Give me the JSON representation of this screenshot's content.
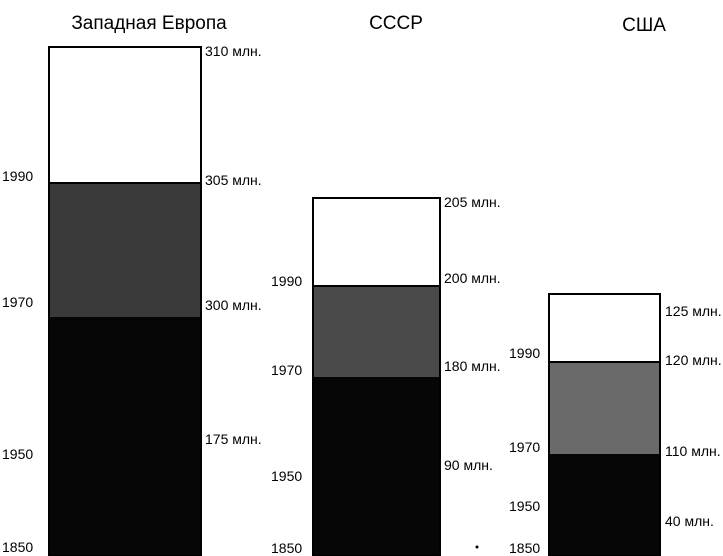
{
  "chart_data": {
    "type": "bar",
    "columns": [
      {
        "title": "Западная Европа",
        "segments": [
          {
            "year_label": "1850",
            "value_label": "",
            "fill": "#060606"
          },
          {
            "year_label": "1950",
            "value_label": "175 млн.",
            "fill": "#060606"
          },
          {
            "year_label": "1970",
            "value_label": "300 млн.",
            "fill": "#3a3a3a"
          },
          {
            "year_label": "1990",
            "value_label": "305 млн.",
            "fill": "#ffffff"
          },
          {
            "year_label": "",
            "value_label": "310 млн.",
            "fill": "#ffffff"
          }
        ]
      },
      {
        "title": "СССР",
        "segments": [
          {
            "year_label": "1850",
            "value_label": "",
            "fill": "#060606"
          },
          {
            "year_label": "1950",
            "value_label": "90 млн.",
            "fill": "#060606"
          },
          {
            "year_label": "1970",
            "value_label": "180 млн.",
            "fill": "#4a4a4a"
          },
          {
            "year_label": "1990",
            "value_label": "200 млн.",
            "fill": "#ffffff"
          },
          {
            "year_label": "",
            "value_label": "205 млн.",
            "fill": "#ffffff"
          }
        ]
      },
      {
        "title": "США",
        "segments": [
          {
            "year_label": "1850",
            "value_label": "",
            "fill": "#060606"
          },
          {
            "year_label": "1950",
            "value_label": "40 млн.",
            "fill": "#060606"
          },
          {
            "year_label": "1970",
            "value_label": "110 млн.",
            "fill": "#6a6a6a"
          },
          {
            "year_label": "1990",
            "value_label": "120 млн.",
            "fill": "#ffffff"
          },
          {
            "year_label": "",
            "value_label": "125 млн.",
            "fill": "#ffffff"
          }
        ]
      }
    ]
  }
}
